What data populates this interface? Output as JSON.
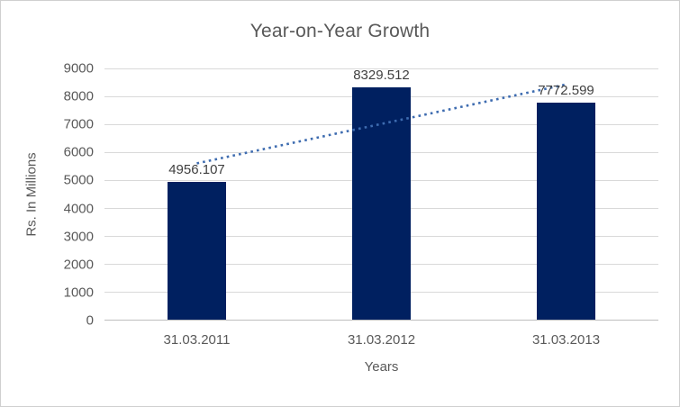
{
  "chart_data": {
    "type": "bar",
    "title": "Year-on-Year Growth",
    "xlabel": "Years",
    "ylabel": "Rs. In Millions",
    "categories": [
      "31.03.2011",
      "31.03.2012",
      "31.03.2013"
    ],
    "values": [
      4956.107,
      8329.512,
      7772.599
    ],
    "data_labels": [
      "4956.107",
      "8329.512",
      "7772.599"
    ],
    "ylim": [
      0,
      9000
    ],
    "ytick_step": 1000,
    "ytick_labels": [
      "0",
      "1000",
      "2000",
      "3000",
      "4000",
      "5000",
      "6000",
      "7000",
      "8000",
      "9000"
    ],
    "grid": "horizontal",
    "legend_position": "none",
    "trendline": {
      "type": "linear",
      "style": "dotted"
    },
    "colors": {
      "bar": "#002060",
      "trendline": "#3e6cb0",
      "gridline": "#d9d9d9",
      "axis_line": "#bfbfbf",
      "axis_text": "#595959",
      "data_label_text": "#404040",
      "title_text": "#595959",
      "background": "#ffffff"
    }
  }
}
